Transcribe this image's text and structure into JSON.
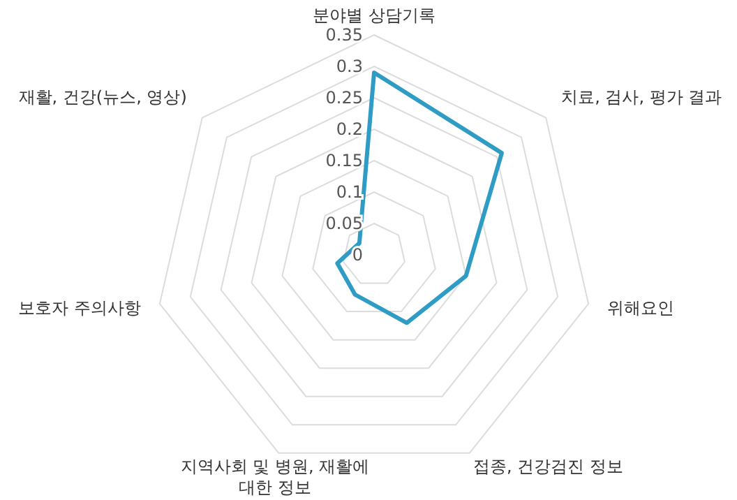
{
  "chart_data": {
    "type": "radar",
    "categories": [
      "분야별 상담기록",
      "치료, 검사, 평가 결과",
      "위해요인",
      "접종, 건강검진 정보",
      "지역사회 및 병원, 재활에 대한 정보",
      "보호자 주의사항",
      "재활, 건강(뉴스, 영상)"
    ],
    "series": [
      {
        "color": "#2e9cc4",
        "values": [
          0.29,
          0.26,
          0.15,
          0.12,
          0.07,
          0.06,
          0.03
        ]
      }
    ],
    "ylim": [
      0,
      0.35
    ],
    "yticks": [
      0,
      0.05,
      0.1,
      0.15,
      0.2,
      0.25,
      0.3,
      0.35
    ],
    "grid": true
  }
}
